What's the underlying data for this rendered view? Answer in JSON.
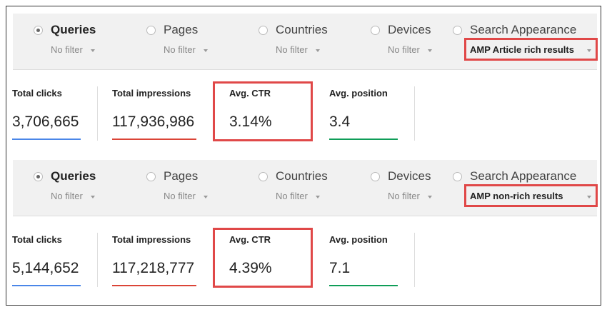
{
  "panels": [
    {
      "tabs": [
        {
          "label": "Queries",
          "filter": "No filter"
        },
        {
          "label": "Pages",
          "filter": "No filter"
        },
        {
          "label": "Countries",
          "filter": "No filter"
        },
        {
          "label": "Devices",
          "filter": "No filter"
        },
        {
          "label": "Search Appearance",
          "filter": "AMP Article rich results"
        }
      ],
      "metrics": [
        {
          "label": "Total clicks",
          "value": "3,706,665",
          "color": "#4a86e8"
        },
        {
          "label": "Total impressions",
          "value": "117,936,986",
          "color": "#db4437"
        },
        {
          "label": "Avg. CTR",
          "value": "3.14%",
          "color": null
        },
        {
          "label": "Avg. position",
          "value": "3.4",
          "color": "#0f9d58"
        }
      ]
    },
    {
      "tabs": [
        {
          "label": "Queries",
          "filter": "No filter"
        },
        {
          "label": "Pages",
          "filter": "No filter"
        },
        {
          "label": "Countries",
          "filter": "No filter"
        },
        {
          "label": "Devices",
          "filter": "No filter"
        },
        {
          "label": "Search Appearance",
          "filter": "AMP non-rich results"
        }
      ],
      "metrics": [
        {
          "label": "Total clicks",
          "value": "5,144,652",
          "color": "#4a86e8"
        },
        {
          "label": "Total impressions",
          "value": "117,218,777",
          "color": "#db4437"
        },
        {
          "label": "Avg. CTR",
          "value": "4.39%",
          "color": null
        },
        {
          "label": "Avg. position",
          "value": "7.1",
          "color": "#0f9d58"
        }
      ]
    }
  ]
}
